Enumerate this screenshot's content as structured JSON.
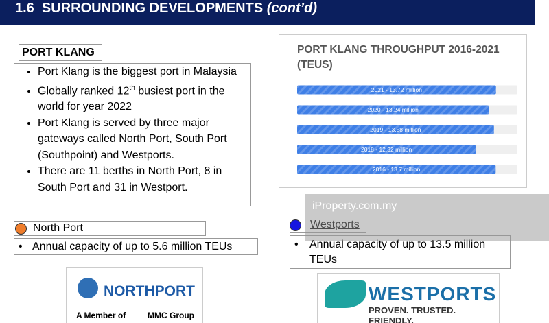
{
  "header": {
    "title": "1.6  SURROUNDING DEVELOPMENTS",
    "title_suffix": "(cont’d)"
  },
  "port_klang": {
    "heading": "PORT KLANG",
    "bullets": [
      [
        "Port Klang is the biggest port in Malaysia"
      ],
      [
        "Globally ranked 12",
        "th",
        " busiest port in the world for year 2022"
      ],
      [
        "Port Klang is served by three major gateways called North Port, South Port (Southpoint) and Westports."
      ],
      [
        "There are 11 berths in North Port, 8 in South Port and 31 in Westport."
      ]
    ]
  },
  "north_port": {
    "name": "North Port",
    "capacity": "Annual capacity of up to 5.6 million TEUs",
    "logo": {
      "brand": "NORTHPORT",
      "member": "A Member of",
      "group": "MMC Group"
    }
  },
  "westports": {
    "name": "Westports",
    "capacity": "Annual capacity of up to 13.5 million TEUs",
    "logo": {
      "brand": "WESTPORTS",
      "tagline": "PROVEN. TRUSTED. FRIENDLY."
    }
  },
  "watermark": "iProperty.com.my",
  "chart_data": {
    "type": "bar",
    "orientation": "horizontal",
    "title": "PORT KLANG THROUGHPUT 2016-2021 (TEUS)",
    "values": [
      13.72,
      13.24,
      13.58,
      12.32,
      13.7
    ],
    "value_labels": [
      "2021 - 13.72 million",
      "2020 - 13.24 million",
      "2019 - 13.58 million",
      "2018 - 12.32 million",
      "2016 - 13.7 million"
    ],
    "color": "#3f7fe6",
    "xlim": [
      0,
      15.2
    ]
  }
}
